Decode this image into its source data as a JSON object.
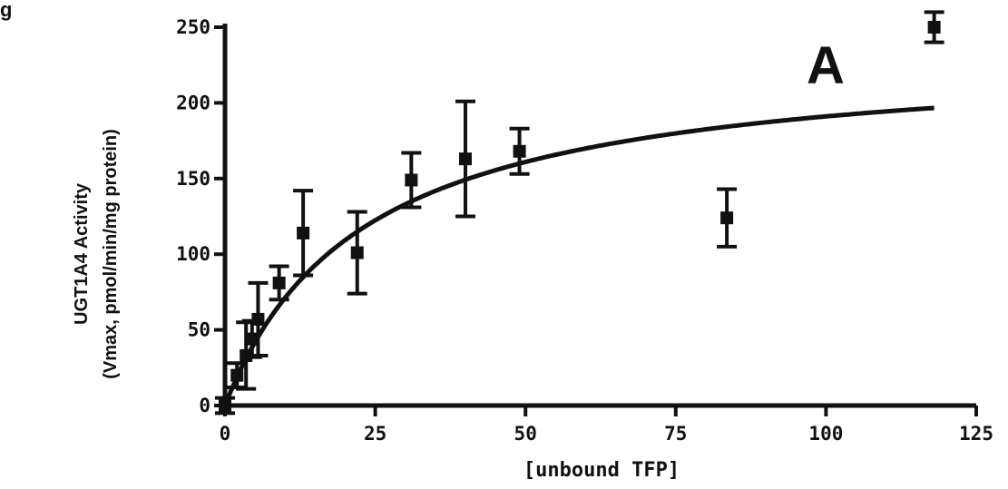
{
  "corner_label": "g",
  "chart_data": {
    "type": "scatter",
    "title": "",
    "panel_label": "A",
    "xlabel": "[unbound TFP]",
    "ylabel_line1": "UGT1A4 Activity",
    "ylabel_line2": "(Vmax, pmol/min/mg protein)",
    "xlim": [
      0,
      125
    ],
    "ylim": [
      0,
      250
    ],
    "x_ticks": [
      0,
      25,
      50,
      75,
      100,
      125
    ],
    "y_ticks": [
      0,
      50,
      100,
      150,
      200,
      250
    ],
    "x_tick_labels": [
      "0",
      "25",
      "50",
      "75",
      "100",
      "125"
    ],
    "y_tick_labels": [
      "0",
      "50",
      "100",
      "150",
      "200",
      "250"
    ],
    "points": [
      {
        "x": 0,
        "y": 0,
        "err": 5
      },
      {
        "x": 2,
        "y": 20,
        "err": 8
      },
      {
        "x": 3.5,
        "y": 33,
        "err": 22
      },
      {
        "x": 4.5,
        "y": 44,
        "err": 12
      },
      {
        "x": 5.5,
        "y": 57,
        "err": 24
      },
      {
        "x": 9,
        "y": 81,
        "err": 11
      },
      {
        "x": 13,
        "y": 114,
        "err": 28
      },
      {
        "x": 22,
        "y": 101,
        "err": 27
      },
      {
        "x": 31,
        "y": 149,
        "err": 18
      },
      {
        "x": 40,
        "y": 163,
        "err": 38
      },
      {
        "x": 49,
        "y": 168,
        "err": 15
      },
      {
        "x": 83.5,
        "y": 124,
        "err": 19
      },
      {
        "x": 118,
        "y": 250,
        "err": 10
      }
    ],
    "fit_curve": {
      "model": "michaelis-menten",
      "vmax": 235,
      "km": 23,
      "x_range": [
        0,
        118
      ]
    },
    "grid": false,
    "legend": "none"
  }
}
